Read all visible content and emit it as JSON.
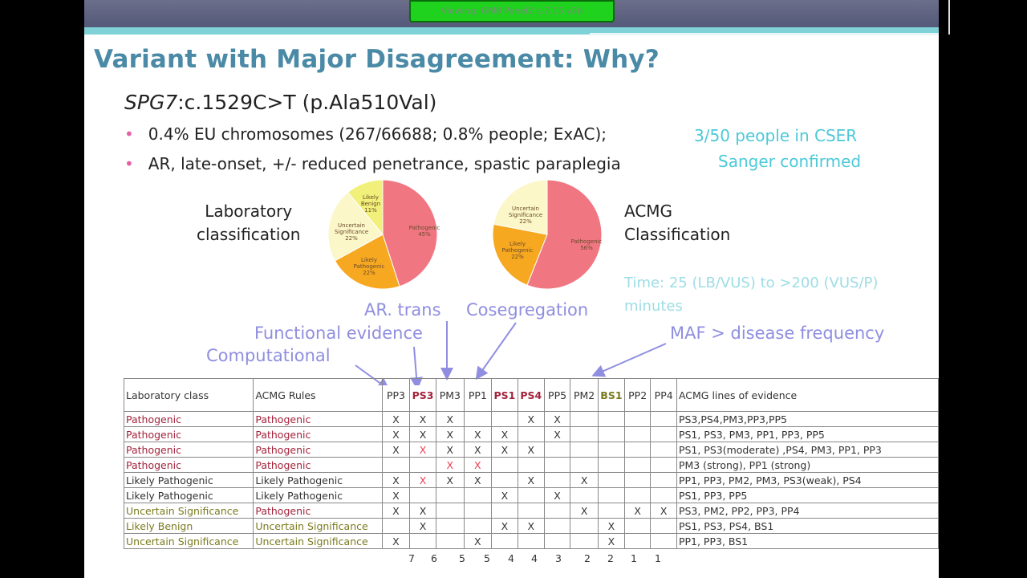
{
  "viewing_label": "Viewing: GM8 Panel2 c.7.15 v2b",
  "title": "Variant with Major Disagreement: Why?",
  "variant": {
    "gene": "SPG7",
    "rest": ":c.1529C>T (p.Ala510Val)"
  },
  "bullets": [
    "0.4% EU chromosomes (267/66688; 0.8% people; ExAC);",
    "AR, late-onset, +/- reduced penetrance, spastic paraplegia"
  ],
  "notes": {
    "cser": "3/50 people in CSER",
    "sanger": "Sanger confirmed"
  },
  "pies": {
    "lab": {
      "label_line1": "Laboratory",
      "label_line2": "classification",
      "slices": [
        {
          "name": "Pathogenic",
          "pct": "45%",
          "value": 45,
          "color": "#f07682"
        },
        {
          "name": "Likely Pathogenic",
          "pct": "22%",
          "value": 22,
          "color": "#f7a821"
        },
        {
          "name": "Uncertain Significance",
          "pct": "22%",
          "value": 22,
          "color": "#fbf7c8"
        },
        {
          "name": "Likely Benign",
          "pct": "11%",
          "value": 11,
          "color": "#f0f07a"
        }
      ]
    },
    "acmg": {
      "label_line1": "ACMG",
      "label_line2": "Classification",
      "slices": [
        {
          "name": "Pathogenic",
          "pct": "56%",
          "value": 56,
          "color": "#f07682"
        },
        {
          "name": "Likely Pathogenic",
          "pct": "22%",
          "value": 22,
          "color": "#f7a821"
        },
        {
          "name": "Uncertain Significance",
          "pct": "22%",
          "value": 22,
          "color": "#fbf7c8"
        }
      ]
    }
  },
  "time_note": {
    "line1": "Time: 25 (LB/VUS) to >200 (VUS/P)",
    "line2": "minutes"
  },
  "annotations": {
    "ar_trans": "AR. trans",
    "cosegregation": "Cosegregation",
    "functional": "Functional evidence",
    "computational": "Computational",
    "maf": "MAF > disease frequency"
  },
  "table": {
    "headers": [
      "Laboratory class",
      "ACMG Rules",
      "PP3",
      "PS3",
      "PM3",
      "PP1",
      "PS1",
      "PS4",
      "PP5",
      "PM2",
      "BS1",
      "PP2",
      "PP4",
      "ACMG lines of evidence"
    ],
    "rows": [
      {
        "lab": "Pathogenic",
        "acmg": "Pathogenic",
        "marks": [
          "X",
          "X",
          "X",
          "",
          "",
          "X",
          "X",
          "",
          "",
          "",
          ""
        ],
        "evidence": "PS3,PS4,PM3,PP3,PP5"
      },
      {
        "lab": "Pathogenic",
        "acmg": "Pathogenic",
        "marks": [
          "X",
          "X",
          "X",
          "X",
          "X",
          "",
          "X",
          "",
          "",
          "",
          ""
        ],
        "evidence": "PS1, PS3, PM3, PP1, PP3, PP5"
      },
      {
        "lab": "Pathogenic",
        "acmg": "Pathogenic",
        "marks": [
          "X",
          "X",
          "X",
          "X",
          "X",
          "X",
          "",
          "",
          "",
          "",
          ""
        ],
        "evidence": "PS1, PS3(moderate) ,PS4, PM3, PP1, PP3"
      },
      {
        "lab": "Pathogenic",
        "acmg": "Pathogenic",
        "marks": [
          "",
          "",
          "X",
          "X",
          "",
          "",
          "",
          "",
          "",
          "",
          ""
        ],
        "evidence": "PM3 (strong), PP1 (strong)"
      },
      {
        "lab": "Likely Pathogenic",
        "acmg": "Likely Pathogenic",
        "marks": [
          "X",
          "X",
          "X",
          "X",
          "",
          "X",
          "",
          "X",
          "",
          "",
          ""
        ],
        "evidence": "PP1, PP3, PM2, PM3, PS3(weak), PS4"
      },
      {
        "lab": "Likely Pathogenic",
        "acmg": "Likely Pathogenic",
        "marks": [
          "X",
          "",
          "",
          "",
          "X",
          "",
          "X",
          "",
          "",
          "",
          ""
        ],
        "evidence": "PS1, PP3, PP5"
      },
      {
        "lab": "Uncertain Significance",
        "acmg": "Pathogenic",
        "marks": [
          "X",
          "X",
          "",
          "",
          "",
          "",
          "",
          "X",
          "",
          "X",
          "X"
        ],
        "evidence": "PS3, PM2, PP2, PP3, PP4"
      },
      {
        "lab": "Likely Benign",
        "acmg": "Uncertain Significance",
        "marks": [
          "",
          "X",
          "",
          "",
          "X",
          "X",
          "",
          "",
          "X",
          "",
          ""
        ],
        "evidence": "PS1, PS3, PS4, BS1"
      },
      {
        "lab": "Uncertain Significance",
        "acmg": "Uncertain Significance",
        "marks": [
          "X",
          "",
          "",
          "X",
          "",
          "",
          "",
          "",
          "X",
          "",
          ""
        ],
        "evidence": "PP1, PP3, BS1"
      }
    ],
    "counts": [
      "7",
      "6",
      "5",
      "5",
      "4",
      "4",
      "3",
      "2",
      "2",
      "1",
      "1"
    ]
  }
}
